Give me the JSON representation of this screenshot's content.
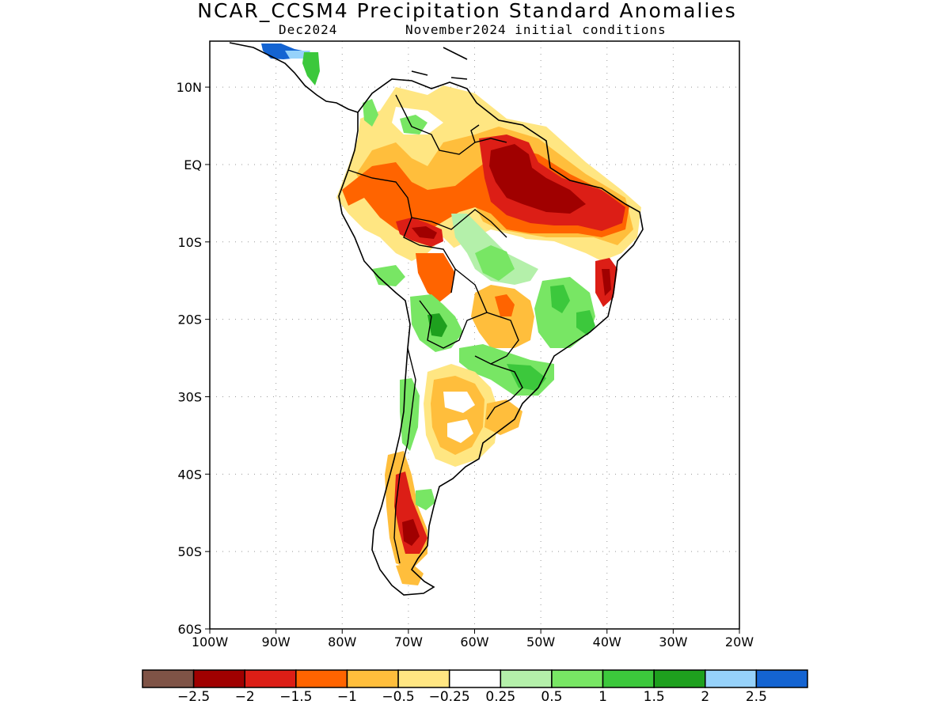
{
  "header": {
    "title": "NCAR_CCSM4 Precipitation Standard Anomalies",
    "valid": "Dec2024",
    "init": "November2024 initial conditions"
  },
  "map": {
    "lon_range": [
      -100,
      -20
    ],
    "lat_range": [
      -60,
      5
    ],
    "lat_ticks": [
      {
        "value": 10,
        "label": "10N"
      },
      {
        "value": 0,
        "label": "EQ"
      },
      {
        "value": -10,
        "label": "10S"
      },
      {
        "value": -20,
        "label": "20S"
      },
      {
        "value": -30,
        "label": "30S"
      },
      {
        "value": -40,
        "label": "40S"
      },
      {
        "value": -50,
        "label": "50S"
      },
      {
        "value": -60,
        "label": "60S"
      }
    ],
    "lon_ticks": [
      {
        "value": -100,
        "label": "100W"
      },
      {
        "value": -90,
        "label": "90W"
      },
      {
        "value": -80,
        "label": "80W"
      },
      {
        "value": -70,
        "label": "70W"
      },
      {
        "value": -60,
        "label": "60W"
      },
      {
        "value": -50,
        "label": "50W"
      },
      {
        "value": -40,
        "label": "40W"
      },
      {
        "value": -30,
        "label": "30W"
      },
      {
        "value": -20,
        "label": "20W"
      }
    ],
    "grid": "dotted"
  },
  "colorbar": {
    "colors": [
      "#7f5346",
      "#a00000",
      "#dc1e16",
      "#ff6400",
      "#ffbe3c",
      "#ffe682",
      "#ffffff",
      "#b4f0aa",
      "#78e664",
      "#3cc83c",
      "#1ea01e",
      "#96d2fa",
      "#1464d2"
    ],
    "labels": [
      "−2.5",
      "−2",
      "−1.5",
      "−1",
      "−0.5",
      "−0.25",
      "0.25",
      "0.5",
      "1",
      "1.5",
      "2",
      "2.5"
    ]
  }
}
